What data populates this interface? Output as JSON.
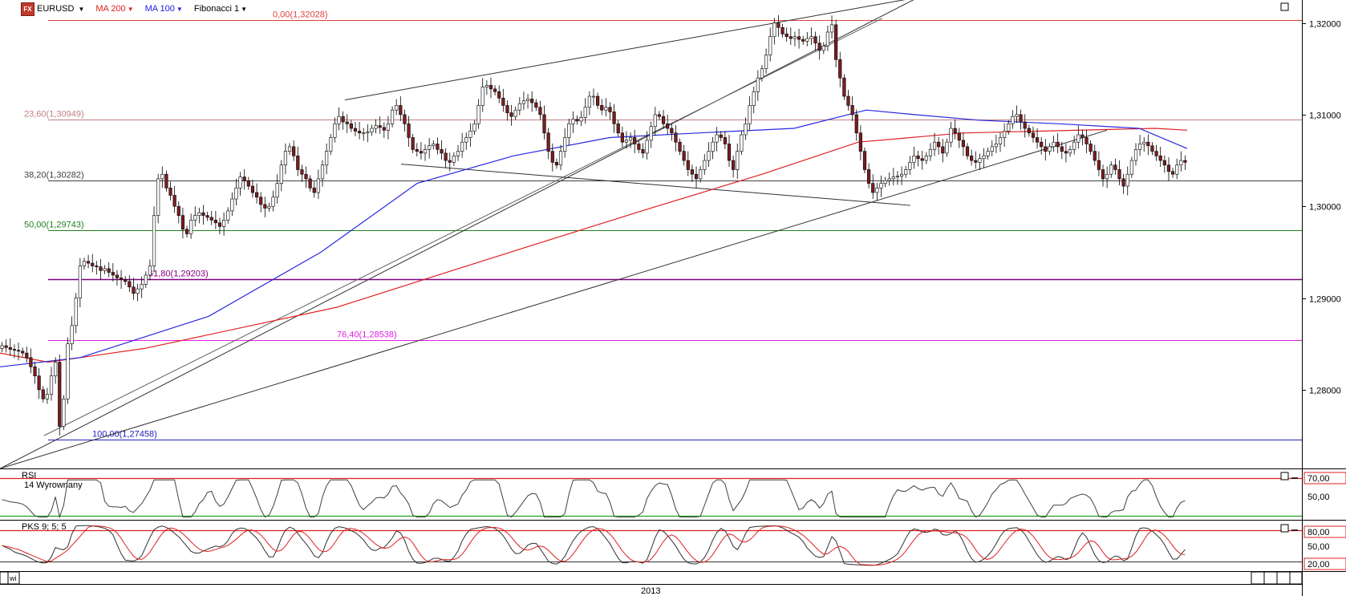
{
  "toolbar": {
    "logo_text": "FX",
    "symbol": "EURUSD",
    "ma200": "MA 200",
    "ma100": "MA 100",
    "fibonacci": "Fibonacci 1"
  },
  "fib_levels": [
    {
      "label": "0,00(1,32028)",
      "price": 1.32028,
      "color": "#e04040"
    },
    {
      "label": "23,60(1,30949)",
      "price": 1.30949,
      "color": "#c08080"
    },
    {
      "label": "38,20(1,30282)",
      "price": 1.30282,
      "color": "#404040"
    },
    {
      "label": "50,00(1,29743)",
      "price": 1.29743,
      "color": "#208020"
    },
    {
      "label": "61,80(1,29203)",
      "price": 1.29203,
      "color": "#800080"
    },
    {
      "label": "76,40(1,28538)",
      "price": 1.28538,
      "color": "#e020e0"
    },
    {
      "label": "100,00(1,27458)",
      "price": 1.27458,
      "color": "#2020c0"
    }
  ],
  "price_axis": {
    "ticks": [
      "1,32000",
      "1,31000",
      "1,30000",
      "1,29000",
      "1,28000"
    ],
    "tick_values": [
      1.32,
      1.31,
      1.3,
      1.29,
      1.28
    ]
  },
  "rsi_panel": {
    "title": "RSI",
    "subtitle": "14 Wyrownany",
    "levels": [
      "70,00",
      "50,00"
    ]
  },
  "stoch_panel": {
    "title": "PKS 9; 5; 5",
    "levels": [
      "80,00",
      "50,00",
      "20,00"
    ]
  },
  "time_axis": {
    "year_label": "2013",
    "mode_label": "wi"
  },
  "colors": {
    "bull": "#ffffff",
    "bear": "#7b1e1e",
    "ma200": "#e02020",
    "ma100": "#2828e0",
    "rsi": "#404040",
    "stoch_k": "#303030",
    "stoch_d": "#e02020"
  },
  "chart_data": {
    "type": "candlestick",
    "symbol": "EURUSD",
    "ylim": [
      1.2715,
      1.3225
    ],
    "series_close": [
      1.2848,
      1.2846,
      1.2844,
      1.2843,
      1.2842,
      1.284,
      1.2835,
      1.2825,
      1.2815,
      1.28,
      1.279,
      1.2795,
      1.2815,
      1.283,
      1.276,
      1.279,
      1.285,
      1.287,
      1.29,
      1.2935,
      1.294,
      1.2938,
      1.2935,
      1.2934,
      1.293,
      1.2932,
      1.2928,
      1.2925,
      1.2922,
      1.292,
      1.2918,
      1.2912,
      1.2905,
      1.291,
      1.2915,
      1.2925,
      1.2935,
      1.299,
      1.303,
      1.3035,
      1.302,
      1.3012,
      1.3,
      1.299,
      1.2975,
      1.297,
      1.2985,
      1.299,
      1.2993,
      1.299,
      1.2988,
      1.2985,
      1.2982,
      1.2978,
      1.2985,
      1.2995,
      1.3008,
      1.302,
      1.3032,
      1.3028,
      1.3022,
      1.3015,
      1.301,
      1.3002,
      1.2998,
      1.3,
      1.301,
      1.3025,
      1.3045,
      1.306,
      1.3065,
      1.3055,
      1.304,
      1.3035,
      1.303,
      1.302,
      1.3015,
      1.303,
      1.3045,
      1.306,
      1.3075,
      1.309,
      1.3098,
      1.3092,
      1.309,
      1.3085,
      1.3082,
      1.308,
      1.308,
      1.3081,
      1.3085,
      1.3088,
      1.3086,
      1.3083,
      1.309,
      1.3105,
      1.311,
      1.31,
      1.309,
      1.3075,
      1.3062,
      1.306,
      1.3058,
      1.3062,
      1.3066,
      1.3068,
      1.3062,
      1.3058,
      1.305,
      1.3048,
      1.3055,
      1.306,
      1.307,
      1.3075,
      1.3082,
      1.309,
      1.311,
      1.313,
      1.3132,
      1.3128,
      1.3125,
      1.3118,
      1.311,
      1.3102,
      1.3098,
      1.3105,
      1.3112,
      1.3115,
      1.3117,
      1.3113,
      1.3108,
      1.31,
      1.308,
      1.306,
      1.3048,
      1.3045,
      1.306,
      1.3075,
      1.309,
      1.3095,
      1.3093,
      1.3097,
      1.3108,
      1.312,
      1.312,
      1.311,
      1.3105,
      1.3108,
      1.3103,
      1.309,
      1.308,
      1.307,
      1.3072,
      1.3075,
      1.3068,
      1.3062,
      1.3058,
      1.3072,
      1.3087,
      1.31,
      1.3098,
      1.309,
      1.3085,
      1.308,
      1.307,
      1.306,
      1.305,
      1.304,
      1.3035,
      1.303,
      1.304,
      1.305,
      1.306,
      1.307,
      1.3078,
      1.3075,
      1.3068,
      1.305,
      1.304,
      1.306,
      1.3078,
      1.309,
      1.311,
      1.3125,
      1.314,
      1.315,
      1.3165,
      1.3185,
      1.32,
      1.3195,
      1.3188,
      1.3185,
      1.3183,
      1.3185,
      1.3182,
      1.318,
      1.3183,
      1.3185,
      1.3178,
      1.317,
      1.3175,
      1.319,
      1.3198,
      1.316,
      1.314,
      1.312,
      1.311,
      1.31,
      1.308,
      1.306,
      1.304,
      1.3025,
      1.3015,
      1.302,
      1.3025,
      1.3028,
      1.303,
      1.3032,
      1.3033,
      1.3035,
      1.304,
      1.3048,
      1.3055,
      1.3052,
      1.305,
      1.3055,
      1.3062,
      1.307,
      1.3065,
      1.3058,
      1.307,
      1.3085,
      1.308,
      1.3072,
      1.3065,
      1.3055,
      1.305,
      1.3048,
      1.3052,
      1.3055,
      1.306,
      1.3065,
      1.3068,
      1.3075,
      1.3082,
      1.309,
      1.3098,
      1.31,
      1.3092,
      1.3085,
      1.308,
      1.3075,
      1.307,
      1.3065,
      1.306,
      1.3065,
      1.307,
      1.3065,
      1.306,
      1.3058,
      1.3062,
      1.307,
      1.3078,
      1.3075,
      1.3068,
      1.306,
      1.305,
      1.304,
      1.303,
      1.3035,
      1.3045,
      1.304,
      1.303,
      1.3022,
      1.3035,
      1.305,
      1.3062,
      1.3068,
      1.307,
      1.3066,
      1.306,
      1.3055,
      1.305,
      1.3045,
      1.3038,
      1.3035,
      1.3045,
      1.305,
      1.3048
    ],
    "ma200": [
      [
        0,
        1.284
      ],
      [
        60,
        1.283
      ],
      [
        180,
        1.2845
      ],
      [
        420,
        1.289
      ],
      [
        600,
        1.294
      ],
      [
        800,
        1.2995
      ],
      [
        950,
        1.3035
      ],
      [
        1070,
        1.307
      ],
      [
        1200,
        1.308
      ],
      [
        1440,
        1.3085
      ],
      [
        1480,
        1.3083
      ]
    ],
    "ma100": [
      [
        0,
        1.2825
      ],
      [
        100,
        1.2835
      ],
      [
        260,
        1.288
      ],
      [
        400,
        1.295
      ],
      [
        520,
        1.3025
      ],
      [
        640,
        1.3055
      ],
      [
        760,
        1.3075
      ],
      [
        870,
        1.308
      ],
      [
        990,
        1.3085
      ],
      [
        1080,
        1.3105
      ],
      [
        1140,
        1.31
      ],
      [
        1220,
        1.3094
      ],
      [
        1320,
        1.309
      ],
      [
        1420,
        1.3085
      ],
      [
        1480,
        1.3063
      ]
    ],
    "trendlines": [
      {
        "from": [
          0,
          1.2714
        ],
        "to": [
          1145,
          1.3228
        ],
        "color": "#303030"
      },
      {
        "from": [
          55,
          1.275
        ],
        "to": [
          1100,
          1.3205
        ],
        "color": "#606060"
      },
      {
        "from": [
          430,
          1.3116
        ],
        "to": [
          1145,
          1.3228
        ],
        "color": "#303030"
      },
      {
        "from": [
          500,
          1.3046
        ],
        "to": [
          1135,
          1.3001
        ],
        "color": "#303030"
      },
      {
        "from": [
          0,
          1.2714
        ],
        "to": [
          1380,
          1.3083
        ],
        "color": "#303030"
      }
    ]
  }
}
